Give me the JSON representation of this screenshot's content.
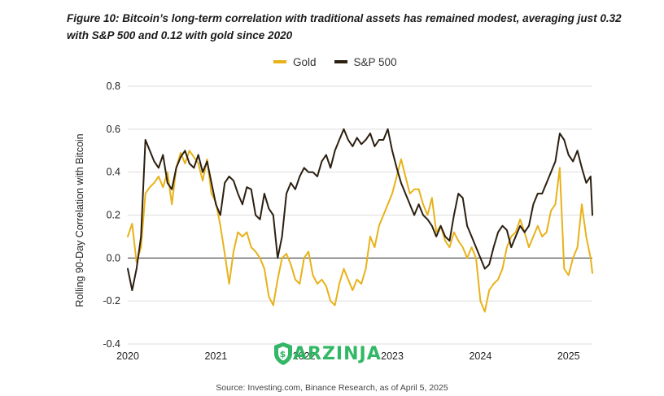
{
  "figure": {
    "title": "Figure 10: Bitcoin’s long-term correlation with traditional assets has remained modest, averaging just 0.32 with S&P 500 and 0.12 with gold since 2020",
    "source": "Source: Investing.com, Binance Research, as of April 5, 2025",
    "watermark": "ARZINJA"
  },
  "colors": {
    "gold": "#e8b21a",
    "sp500": "#2b1f10",
    "zero_line": "#444444",
    "grid": "#dddddd"
  },
  "chart_data": {
    "type": "line",
    "title": "",
    "xlabel": "",
    "ylabel": "Rolling 90-Day Correlation with Bitcoin",
    "xlim": [
      2020.0,
      2025.27
    ],
    "ylim": [
      -0.4,
      0.8
    ],
    "x_ticks": [
      2020,
      2021,
      2022,
      2023,
      2024,
      2025
    ],
    "y_ticks": [
      -0.4,
      -0.2,
      0.0,
      0.2,
      0.4,
      0.6,
      0.8
    ],
    "y_tick_labels": [
      "-0.4",
      "-0.2",
      "0.0",
      "0.2",
      "0.4",
      "0.6",
      "0.8"
    ],
    "grid": "horizontal",
    "legend": "top-center",
    "series": [
      {
        "name": "Gold",
        "color": "#e8b21a",
        "x": [
          2020.0,
          2020.05,
          2020.1,
          2020.15,
          2020.2,
          2020.25,
          2020.3,
          2020.35,
          2020.4,
          2020.45,
          2020.5,
          2020.55,
          2020.6,
          2020.65,
          2020.7,
          2020.75,
          2020.8,
          2020.85,
          2020.9,
          2020.95,
          2021.0,
          2021.05,
          2021.1,
          2021.15,
          2021.2,
          2021.25,
          2021.3,
          2021.35,
          2021.4,
          2021.45,
          2021.5,
          2021.55,
          2021.6,
          2021.65,
          2021.7,
          2021.75,
          2021.8,
          2021.85,
          2021.9,
          2021.95,
          2022.0,
          2022.05,
          2022.1,
          2022.15,
          2022.2,
          2022.25,
          2022.3,
          2022.35,
          2022.4,
          2022.45,
          2022.5,
          2022.55,
          2022.6,
          2022.65,
          2022.7,
          2022.75,
          2022.8,
          2022.85,
          2022.9,
          2022.95,
          2023.0,
          2023.05,
          2023.1,
          2023.15,
          2023.2,
          2023.25,
          2023.3,
          2023.35,
          2023.4,
          2023.45,
          2023.5,
          2023.55,
          2023.6,
          2023.65,
          2023.7,
          2023.75,
          2023.8,
          2023.85,
          2023.9,
          2023.95,
          2024.0,
          2024.05,
          2024.1,
          2024.15,
          2024.2,
          2024.25,
          2024.3,
          2024.35,
          2024.4,
          2024.45,
          2024.5,
          2024.55,
          2024.6,
          2024.65,
          2024.7,
          2024.75,
          2024.8,
          2024.85,
          2024.9,
          2024.95,
          2025.0,
          2025.05,
          2025.1,
          2025.15,
          2025.2,
          2025.25,
          2025.27
        ],
        "values": [
          0.1,
          0.16,
          -0.02,
          0.05,
          0.3,
          0.33,
          0.35,
          0.38,
          0.33,
          0.4,
          0.25,
          0.42,
          0.49,
          0.44,
          0.5,
          0.47,
          0.44,
          0.36,
          0.46,
          0.3,
          0.26,
          0.15,
          0.02,
          -0.12,
          0.03,
          0.12,
          0.1,
          0.12,
          0.05,
          0.03,
          0.0,
          -0.05,
          -0.18,
          -0.22,
          -0.1,
          0.0,
          0.02,
          -0.03,
          -0.1,
          -0.12,
          0.0,
          0.03,
          -0.08,
          -0.12,
          -0.1,
          -0.13,
          -0.2,
          -0.22,
          -0.12,
          -0.05,
          -0.1,
          -0.15,
          -0.1,
          -0.12,
          -0.05,
          0.1,
          0.05,
          0.15,
          0.2,
          0.25,
          0.3,
          0.38,
          0.46,
          0.38,
          0.3,
          0.32,
          0.32,
          0.25,
          0.2,
          0.28,
          0.12,
          0.15,
          0.08,
          0.05,
          0.12,
          0.08,
          0.05,
          0.0,
          0.05,
          0.0,
          -0.2,
          -0.25,
          -0.15,
          -0.12,
          -0.1,
          -0.05,
          0.05,
          0.1,
          0.12,
          0.18,
          0.12,
          0.05,
          0.1,
          0.15,
          0.1,
          0.12,
          0.22,
          0.25,
          0.42,
          -0.05,
          -0.08,
          0.0,
          0.05,
          0.25,
          0.1,
          0.0,
          -0.07
        ]
      },
      {
        "name": "S&P 500",
        "color": "#2b1f10",
        "x": [
          2020.0,
          2020.05,
          2020.1,
          2020.15,
          2020.2,
          2020.25,
          2020.3,
          2020.35,
          2020.4,
          2020.45,
          2020.5,
          2020.55,
          2020.6,
          2020.65,
          2020.7,
          2020.75,
          2020.8,
          2020.85,
          2020.9,
          2020.95,
          2021.0,
          2021.05,
          2021.1,
          2021.15,
          2021.2,
          2021.25,
          2021.3,
          2021.35,
          2021.4,
          2021.45,
          2021.5,
          2021.55,
          2021.6,
          2021.65,
          2021.7,
          2021.75,
          2021.8,
          2021.85,
          2021.9,
          2021.95,
          2022.0,
          2022.05,
          2022.1,
          2022.15,
          2022.2,
          2022.25,
          2022.3,
          2022.35,
          2022.4,
          2022.45,
          2022.5,
          2022.55,
          2022.6,
          2022.65,
          2022.7,
          2022.75,
          2022.8,
          2022.85,
          2022.9,
          2022.95,
          2023.0,
          2023.05,
          2023.1,
          2023.15,
          2023.2,
          2023.25,
          2023.3,
          2023.35,
          2023.4,
          2023.45,
          2023.5,
          2023.55,
          2023.6,
          2023.65,
          2023.7,
          2023.75,
          2023.8,
          2023.85,
          2023.9,
          2023.95,
          2024.0,
          2024.05,
          2024.1,
          2024.15,
          2024.2,
          2024.25,
          2024.3,
          2024.35,
          2024.4,
          2024.45,
          2024.5,
          2024.55,
          2024.6,
          2024.65,
          2024.7,
          2024.75,
          2024.8,
          2024.85,
          2024.9,
          2024.95,
          2025.0,
          2025.05,
          2025.1,
          2025.15,
          2025.2,
          2025.25,
          2025.27
        ],
        "values": [
          -0.05,
          -0.15,
          -0.05,
          0.1,
          0.55,
          0.5,
          0.45,
          0.42,
          0.48,
          0.35,
          0.32,
          0.42,
          0.47,
          0.5,
          0.44,
          0.42,
          0.48,
          0.4,
          0.45,
          0.35,
          0.25,
          0.2,
          0.35,
          0.38,
          0.36,
          0.3,
          0.25,
          0.33,
          0.32,
          0.2,
          0.18,
          0.3,
          0.23,
          0.2,
          0.0,
          0.1,
          0.3,
          0.35,
          0.32,
          0.38,
          0.42,
          0.4,
          0.4,
          0.38,
          0.45,
          0.48,
          0.42,
          0.5,
          0.55,
          0.6,
          0.55,
          0.52,
          0.56,
          0.53,
          0.55,
          0.58,
          0.52,
          0.55,
          0.55,
          0.6,
          0.5,
          0.42,
          0.35,
          0.3,
          0.25,
          0.2,
          0.25,
          0.2,
          0.18,
          0.15,
          0.1,
          0.15,
          0.1,
          0.08,
          0.2,
          0.3,
          0.28,
          0.15,
          0.1,
          0.05,
          0.0,
          -0.05,
          -0.03,
          0.05,
          0.12,
          0.15,
          0.13,
          0.05,
          0.1,
          0.15,
          0.12,
          0.15,
          0.25,
          0.3,
          0.3,
          0.35,
          0.4,
          0.45,
          0.58,
          0.55,
          0.48,
          0.45,
          0.5,
          0.42,
          0.35,
          0.38,
          0.2
        ]
      }
    ]
  }
}
